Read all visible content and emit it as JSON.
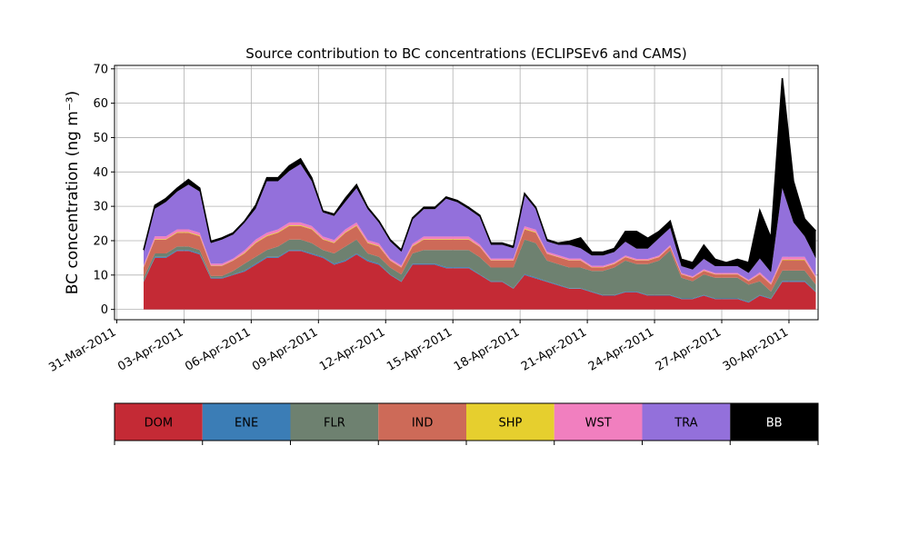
{
  "chart_data": {
    "type": "area",
    "stacked": true,
    "title": "Source contribution to BC concentrations (ECLIPSEv6 and CAMS)",
    "ylabel": "BC concentration (ng m⁻³)",
    "xlabel": "",
    "ylim": [
      -3,
      71
    ],
    "xlim": [
      -0.1,
      31.3
    ],
    "yticks": [
      0,
      10,
      20,
      30,
      40,
      50,
      60,
      70
    ],
    "xticks": [
      {
        "day": 0,
        "label": "31-Mar-2011"
      },
      {
        "day": 3,
        "label": "03-Apr-2011"
      },
      {
        "day": 6,
        "label": "06-Apr-2011"
      },
      {
        "day": 9,
        "label": "09-Apr-2011"
      },
      {
        "day": 12,
        "label": "12-Apr-2011"
      },
      {
        "day": 15,
        "label": "15-Apr-2011"
      },
      {
        "day": 18,
        "label": "18-Apr-2011"
      },
      {
        "day": 21,
        "label": "21-Apr-2011"
      },
      {
        "day": 24,
        "label": "24-Apr-2011"
      },
      {
        "day": 27,
        "label": "27-Apr-2011"
      },
      {
        "day": 30,
        "label": "30-Apr-2011"
      }
    ],
    "grid": true,
    "x_unit": "days since 31-Mar-2011",
    "x": [
      1.2,
      1.7,
      2.2,
      2.7,
      3.2,
      3.7,
      4.2,
      4.7,
      5.2,
      5.7,
      6.2,
      6.7,
      7.2,
      7.7,
      8.2,
      8.7,
      9.2,
      9.7,
      10.2,
      10.7,
      11.2,
      11.7,
      12.2,
      12.7,
      13.2,
      13.7,
      14.2,
      14.7,
      15.2,
      15.7,
      16.2,
      16.7,
      17.2,
      17.7,
      18.2,
      18.7,
      19.2,
      19.7,
      20.2,
      20.7,
      21.2,
      21.7,
      22.2,
      22.7,
      23.2,
      23.7,
      24.2,
      24.7,
      25.2,
      25.7,
      26.2,
      26.7,
      27.2,
      27.7,
      28.2,
      28.7,
      29.2,
      29.7,
      30.2,
      30.7,
      31.2
    ],
    "series": [
      {
        "name": "DOM",
        "color": "#c42a35",
        "values": [
          8,
          15,
          15,
          17,
          17,
          16,
          9,
          9,
          10,
          11,
          13,
          15,
          15,
          17,
          17,
          16,
          15,
          13,
          14,
          16,
          14,
          13,
          10,
          8,
          13,
          13,
          13,
          12,
          12,
          12,
          10,
          8,
          8,
          6,
          10,
          9,
          8,
          7,
          6,
          6,
          5,
          4,
          4,
          5,
          5,
          4,
          4,
          4,
          3,
          3,
          4,
          3,
          3,
          3,
          2,
          4,
          3,
          8,
          8,
          8,
          5
        ]
      },
      {
        "name": "ENE",
        "color": "#3b7db6",
        "values": [
          0.2,
          0.3,
          0.3,
          0.3,
          0.3,
          0.3,
          0.2,
          0.2,
          0.2,
          0.3,
          0.3,
          0.3,
          0.3,
          0.3,
          0.3,
          0.3,
          0.3,
          0.3,
          0.3,
          0.3,
          0.3,
          0.3,
          0.2,
          0.2,
          0.3,
          0.3,
          0.3,
          0.3,
          0.3,
          0.3,
          0.2,
          0.2,
          0.2,
          0.2,
          0.3,
          0.3,
          0.2,
          0.2,
          0.2,
          0.2,
          0.2,
          0.2,
          0.2,
          0.2,
          0.2,
          0.2,
          0.2,
          0.2,
          0.2,
          0.2,
          0.2,
          0.2,
          0.2,
          0.2,
          0.2,
          0.2,
          0.2,
          0.3,
          0.3,
          0.3,
          0.2
        ]
      },
      {
        "name": "FLR",
        "color": "#6e8170",
        "values": [
          1,
          1,
          1,
          1,
          1,
          1,
          0.5,
          0.5,
          1,
          2,
          2,
          2,
          3,
          3,
          3,
          3,
          2,
          3,
          4,
          4,
          2,
          2,
          2,
          2,
          3,
          4,
          4,
          5,
          5,
          5,
          5,
          4,
          4,
          6,
          10,
          10,
          6,
          6,
          6,
          6,
          6,
          7,
          8,
          9,
          8,
          9,
          10,
          13,
          6,
          5,
          6,
          6,
          6,
          6,
          5,
          4,
          2,
          3,
          3,
          3,
          2
        ]
      },
      {
        "name": "IND",
        "color": "#cd6a58",
        "values": [
          3,
          4,
          4,
          4,
          4,
          4,
          3,
          3,
          3,
          3,
          4,
          4,
          4,
          4,
          4,
          4,
          3,
          3,
          4,
          4,
          3,
          3,
          2,
          2,
          2,
          3,
          3,
          3,
          3,
          3,
          3,
          2,
          2,
          2,
          3,
          3,
          2,
          2,
          2,
          2,
          1,
          1,
          1,
          1,
          1,
          1,
          1,
          1,
          1,
          1,
          1,
          1,
          1,
          1,
          1,
          2,
          2,
          3,
          3,
          3,
          2
        ]
      },
      {
        "name": "SHP",
        "color": "#e6cf2e",
        "values": [
          0.1,
          0.2,
          0.2,
          0.2,
          0.2,
          0.2,
          0.1,
          0.1,
          0.1,
          0.2,
          0.2,
          0.2,
          0.2,
          0.2,
          0.2,
          0.2,
          0.2,
          0.2,
          0.2,
          0.2,
          0.2,
          0.2,
          0.1,
          0.1,
          0.2,
          0.2,
          0.2,
          0.2,
          0.2,
          0.2,
          0.1,
          0.1,
          0.1,
          0.1,
          0.2,
          0.2,
          0.1,
          0.1,
          0.1,
          0.1,
          0.1,
          0.1,
          0.1,
          0.1,
          0.1,
          0.1,
          0.1,
          0.1,
          0.1,
          0.1,
          0.1,
          0.1,
          0.1,
          0.1,
          0.1,
          0.1,
          0.1,
          0.2,
          0.2,
          0.2,
          0.1
        ]
      },
      {
        "name": "WST",
        "color": "#f17fbf",
        "values": [
          0.5,
          0.8,
          0.8,
          0.8,
          0.8,
          0.8,
          0.5,
          0.5,
          0.5,
          0.7,
          0.8,
          0.8,
          0.8,
          0.8,
          0.8,
          0.8,
          0.7,
          0.7,
          0.8,
          0.8,
          0.7,
          0.7,
          0.5,
          0.5,
          0.6,
          0.7,
          0.7,
          0.7,
          0.7,
          0.7,
          0.6,
          0.5,
          0.5,
          0.5,
          0.7,
          0.7,
          0.5,
          0.5,
          0.5,
          0.5,
          0.4,
          0.4,
          0.4,
          0.4,
          0.4,
          0.4,
          0.4,
          0.4,
          0.3,
          0.3,
          0.4,
          0.3,
          0.3,
          0.3,
          0.3,
          0.5,
          0.5,
          0.8,
          0.8,
          0.8,
          0.5
        ]
      },
      {
        "name": "TRA",
        "color": "#9370db",
        "values": [
          4,
          8,
          10,
          11,
          13,
          12,
          6,
          7,
          7,
          8,
          9,
          15,
          14,
          15,
          17,
          13,
          7,
          7,
          8,
          10,
          9,
          6,
          5,
          4,
          7,
          8,
          8,
          11,
          10,
          8,
          8,
          4,
          4,
          3,
          9,
          6,
          3,
          3,
          4,
          3,
          3,
          3,
          3,
          4,
          3,
          3,
          5,
          5,
          2,
          2,
          3,
          2,
          2,
          2,
          2,
          4,
          3,
          20,
          10,
          6,
          5
        ]
      },
      {
        "name": "BB",
        "color": "#000000",
        "values": [
          0.5,
          1,
          1,
          1,
          1.5,
          1,
          0.5,
          0.5,
          0.5,
          0.5,
          1,
          1,
          1,
          1.5,
          1.5,
          1,
          0.5,
          0.5,
          1,
          1,
          0.5,
          0.5,
          0.5,
          0.5,
          0.5,
          0.5,
          0.5,
          0.5,
          0.5,
          0.5,
          0.5,
          0.5,
          0.5,
          0.5,
          0.5,
          0.5,
          0.5,
          0.5,
          1,
          3,
          1,
          1,
          1,
          3,
          5,
          3,
          2,
          2,
          2,
          2,
          4,
          2,
          1,
          2,
          3,
          14,
          10,
          32,
          12,
          5,
          8
        ]
      }
    ]
  }
}
